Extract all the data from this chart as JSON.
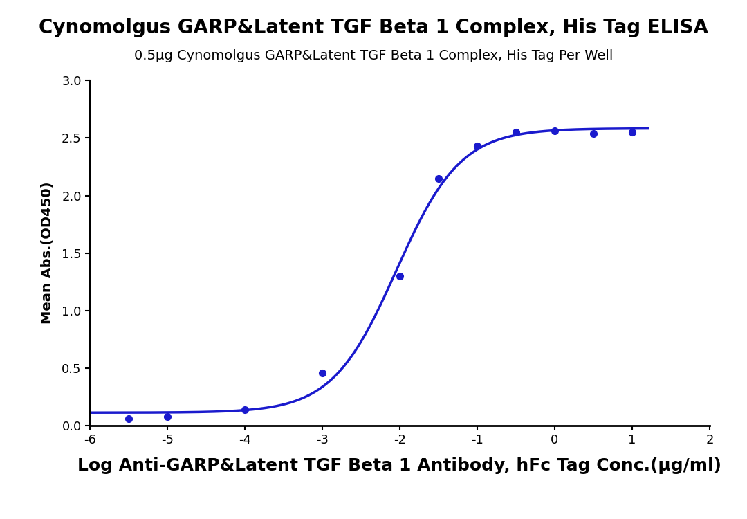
{
  "title": "Cynomolgus GARP&Latent TGF Beta 1 Complex, His Tag ELISA",
  "subtitle": "0.5μg Cynomolgus GARP&Latent TGF Beta 1 Complex, His Tag Per Well",
  "xlabel": "Log Anti-GARP&Latent TGF Beta 1 Antibody, hFc Tag Conc.(μg/ml)",
  "ylabel": "Mean Abs.(OD450)",
  "data_x": [
    -5.5,
    -5.0,
    -4.0,
    -3.0,
    -2.0,
    -1.5,
    -1.0,
    -0.5,
    0.0,
    0.5,
    1.0
  ],
  "data_y": [
    0.06,
    0.08,
    0.14,
    0.46,
    1.3,
    2.15,
    2.43,
    2.55,
    2.56,
    2.54,
    2.55
  ],
  "xlim": [
    -6,
    2
  ],
  "ylim": [
    0.0,
    3.0
  ],
  "xticks": [
    -6,
    -5,
    -4,
    -3,
    -2,
    -1,
    0,
    1,
    2
  ],
  "yticks": [
    0.0,
    0.5,
    1.0,
    1.5,
    2.0,
    2.5,
    3.0
  ],
  "line_color": "#1a1acd",
  "marker_color": "#1a1acd",
  "title_fontsize": 20,
  "subtitle_fontsize": 14,
  "xlabel_fontsize": 18,
  "ylabel_fontsize": 14,
  "tick_fontsize": 13,
  "background_color": "#ffffff"
}
